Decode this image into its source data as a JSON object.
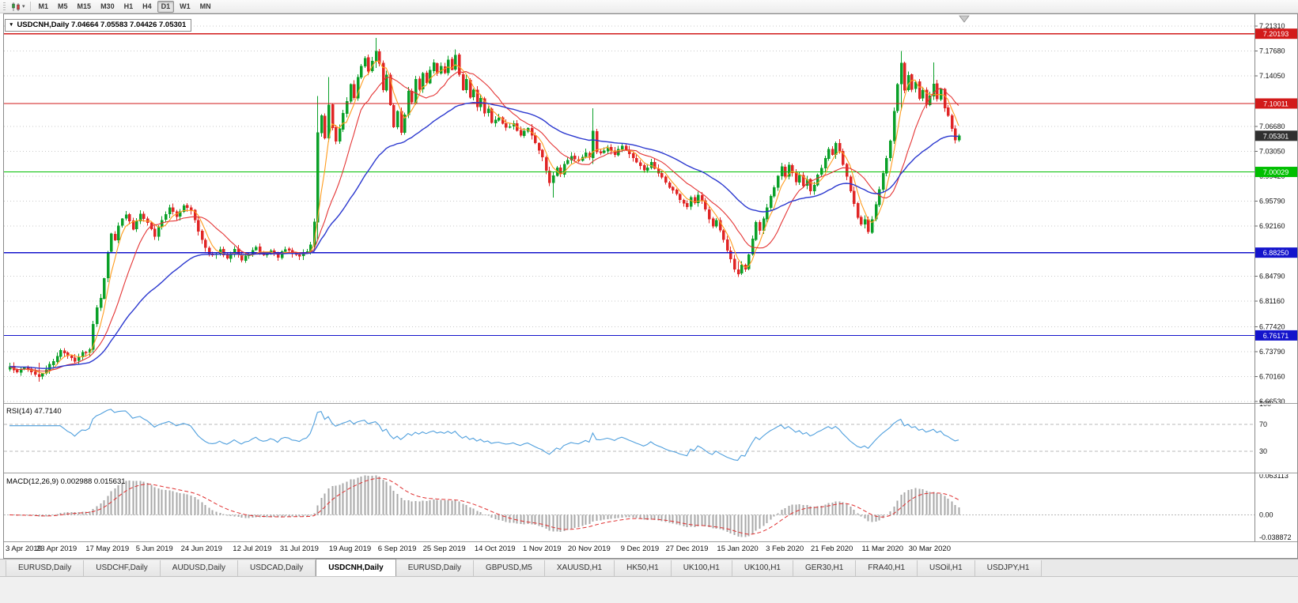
{
  "toolbar": {
    "timeframes": [
      "M1",
      "M5",
      "M15",
      "M30",
      "H1",
      "H4",
      "D1",
      "W1",
      "MN"
    ],
    "active": "D1"
  },
  "title_box": {
    "text": "USDCNH,Daily 7.04664 7.05583 7.04426 7.05301",
    "symbol": "USDCNH",
    "period": "Daily"
  },
  "tabs": {
    "active_index": 4,
    "items": [
      "EURUSD,Daily",
      "USDCHF,Daily",
      "AUDUSD,Daily",
      "USDCAD,Daily",
      "USDCNH,Daily",
      "EURUSD,Daily",
      "GBPUSD,M5",
      "XAUUSD,H1",
      "HK50,H1",
      "UK100,H1",
      "UK100,H1",
      "GER30,H1",
      "FRA40,H1",
      "USOil,H1",
      "USDJPY,H1"
    ]
  },
  "chart_data": {
    "type": "candlestick",
    "symbol": "USDCNH",
    "period": "Daily",
    "ohlc": {
      "open": 7.04664,
      "high": 7.05583,
      "low": 7.04426,
      "close": 7.05301
    },
    "bars": 263,
    "price_range": [
      6.6653,
      7.2131
    ],
    "y_ticks": [
      7.2131,
      7.1768,
      7.1405,
      7.0668,
      7.0305,
      6.9942,
      6.9579,
      6.9216,
      6.8479,
      6.8116,
      6.7742,
      6.7379,
      6.7016,
      6.6653
    ],
    "hlines": [
      {
        "price": 7.20193,
        "color": "#d21a1a"
      },
      {
        "price": 7.10011,
        "color": "#d21a1a"
      },
      {
        "price": 7.00029,
        "color": "#00bf00"
      },
      {
        "price": 6.8825,
        "color": "#1414cc"
      },
      {
        "price": 6.76171,
        "color": "#1414cc"
      }
    ],
    "current_price": 7.05301,
    "x_labels": [
      "3 Apr 2019",
      "23 Apr 2019",
      "17 May 2019",
      "5 Jun 2019",
      "24 Jun 2019",
      "12 Jul 2019",
      "31 Jul 2019",
      "19 Aug 2019",
      "6 Sep 2019",
      "25 Sep 2019",
      "14 Oct 2019",
      "1 Nov 2019",
      "20 Nov 2019",
      "9 Dec 2019",
      "27 Dec 2019",
      "15 Jan 2020",
      "3 Feb 2020",
      "21 Feb 2020",
      "11 Mar 2020",
      "30 Mar 2020"
    ],
    "x_label_indices": [
      0,
      13,
      27,
      40,
      53,
      67,
      80,
      94,
      107,
      120,
      134,
      147,
      160,
      174,
      187,
      201,
      214,
      227,
      241,
      254
    ],
    "waypoints": [
      [
        0,
        6.716
      ],
      [
        2,
        6.707
      ],
      [
        4,
        6.716
      ],
      [
        6,
        6.709
      ],
      [
        8,
        6.7
      ],
      [
        10,
        6.713
      ],
      [
        12,
        6.723
      ],
      [
        14,
        6.741
      ],
      [
        16,
        6.731
      ],
      [
        18,
        6.726
      ],
      [
        20,
        6.736
      ],
      [
        22,
        6.741
      ],
      [
        23,
        6.78
      ],
      [
        24,
        6.803
      ],
      [
        25,
        6.818
      ],
      [
        26,
        6.846
      ],
      [
        27,
        6.882
      ],
      [
        28,
        6.91
      ],
      [
        29,
        6.903
      ],
      [
        30,
        6.923
      ],
      [
        32,
        6.938
      ],
      [
        34,
        6.917
      ],
      [
        36,
        6.941
      ],
      [
        38,
        6.926
      ],
      [
        40,
        6.907
      ],
      [
        42,
        6.931
      ],
      [
        44,
        6.947
      ],
      [
        46,
        6.935
      ],
      [
        48,
        6.952
      ],
      [
        50,
        6.946
      ],
      [
        52,
        6.913
      ],
      [
        54,
        6.888
      ],
      [
        56,
        6.877
      ],
      [
        58,
        6.885
      ],
      [
        60,
        6.876
      ],
      [
        62,
        6.888
      ],
      [
        64,
        6.871
      ],
      [
        66,
        6.881
      ],
      [
        68,
        6.889
      ],
      [
        70,
        6.878
      ],
      [
        72,
        6.885
      ],
      [
        74,
        6.877
      ],
      [
        76,
        6.887
      ],
      [
        78,
        6.881
      ],
      [
        80,
        6.878
      ],
      [
        82,
        6.885
      ],
      [
        83,
        6.893
      ],
      [
        84,
        6.928
      ],
      [
        85,
        7.058
      ],
      [
        86,
        7.081
      ],
      [
        87,
        7.049
      ],
      [
        88,
        7.096
      ],
      [
        89,
        7.063
      ],
      [
        90,
        7.045
      ],
      [
        91,
        7.063
      ],
      [
        92,
        7.087
      ],
      [
        93,
        7.105
      ],
      [
        94,
        7.127
      ],
      [
        95,
        7.109
      ],
      [
        96,
        7.137
      ],
      [
        97,
        7.153
      ],
      [
        98,
        7.168
      ],
      [
        99,
        7.147
      ],
      [
        100,
        7.161
      ],
      [
        101,
        7.178
      ],
      [
        102,
        7.157
      ],
      [
        103,
        7.121
      ],
      [
        104,
        7.141
      ],
      [
        105,
        7.097
      ],
      [
        106,
        7.067
      ],
      [
        107,
        7.089
      ],
      [
        108,
        7.059
      ],
      [
        109,
        7.083
      ],
      [
        110,
        7.119
      ],
      [
        111,
        7.103
      ],
      [
        112,
        7.135
      ],
      [
        113,
        7.119
      ],
      [
        114,
        7.145
      ],
      [
        115,
        7.129
      ],
      [
        116,
        7.149
      ],
      [
        117,
        7.161
      ],
      [
        118,
        7.143
      ],
      [
        119,
        7.155
      ],
      [
        120,
        7.147
      ],
      [
        121,
        7.163
      ],
      [
        122,
        7.149
      ],
      [
        123,
        7.169
      ],
      [
        124,
        7.141
      ],
      [
        125,
        7.121
      ],
      [
        126,
        7.135
      ],
      [
        127,
        7.109
      ],
      [
        128,
        7.121
      ],
      [
        129,
        7.097
      ],
      [
        130,
        7.107
      ],
      [
        131,
        7.085
      ],
      [
        132,
        7.093
      ],
      [
        133,
        7.073
      ],
      [
        135,
        7.081
      ],
      [
        137,
        7.063
      ],
      [
        139,
        7.069
      ],
      [
        141,
        7.055
      ],
      [
        143,
        7.065
      ],
      [
        145,
        7.043
      ],
      [
        147,
        7.021
      ],
      [
        148,
        7.003
      ],
      [
        149,
        6.985
      ],
      [
        150,
        6.993
      ],
      [
        151,
        7.007
      ],
      [
        152,
        6.997
      ],
      [
        153,
        7.011
      ],
      [
        155,
        7.023
      ],
      [
        157,
        7.017
      ],
      [
        159,
        7.029
      ],
      [
        160,
        7.021
      ],
      [
        161,
        7.061
      ],
      [
        162,
        7.031
      ],
      [
        163,
        7.027
      ],
      [
        165,
        7.037
      ],
      [
        167,
        7.027
      ],
      [
        169,
        7.039
      ],
      [
        171,
        7.027
      ],
      [
        173,
        7.013
      ],
      [
        175,
        7.003
      ],
      [
        177,
        7.013
      ],
      [
        179,
        6.997
      ],
      [
        181,
        6.985
      ],
      [
        183,
        6.973
      ],
      [
        185,
        6.961
      ],
      [
        187,
        6.949
      ],
      [
        188,
        6.961
      ],
      [
        189,
        6.955
      ],
      [
        190,
        6.965
      ],
      [
        191,
        6.957
      ],
      [
        192,
        6.945
      ],
      [
        193,
        6.933
      ],
      [
        194,
        6.923
      ],
      [
        195,
        6.931
      ],
      [
        196,
        6.915
      ],
      [
        197,
        6.901
      ],
      [
        198,
        6.885
      ],
      [
        199,
        6.871
      ],
      [
        200,
        6.857
      ],
      [
        201,
        6.851
      ],
      [
        202,
        6.863
      ],
      [
        203,
        6.857
      ],
      [
        204,
        6.879
      ],
      [
        205,
        6.903
      ],
      [
        206,
        6.927
      ],
      [
        207,
        6.913
      ],
      [
        208,
        6.931
      ],
      [
        209,
        6.949
      ],
      [
        210,
        6.963
      ],
      [
        211,
        6.977
      ],
      [
        212,
        6.995
      ],
      [
        213,
        7.007
      ],
      [
        214,
        6.995
      ],
      [
        215,
        7.011
      ],
      [
        216,
        7.001
      ],
      [
        217,
        6.987
      ],
      [
        218,
        6.995
      ],
      [
        219,
        6.979
      ],
      [
        220,
        6.987
      ],
      [
        221,
        6.971
      ],
      [
        222,
        6.981
      ],
      [
        223,
        6.995
      ],
      [
        224,
        7.007
      ],
      [
        225,
        7.021
      ],
      [
        226,
        7.035
      ],
      [
        227,
        7.027
      ],
      [
        228,
        7.043
      ],
      [
        229,
        7.031
      ],
      [
        230,
        7.011
      ],
      [
        231,
        6.993
      ],
      [
        232,
        6.971
      ],
      [
        233,
        6.953
      ],
      [
        234,
        6.935
      ],
      [
        235,
        6.923
      ],
      [
        236,
        6.931
      ],
      [
        237,
        6.913
      ],
      [
        238,
        6.931
      ],
      [
        239,
        6.953
      ],
      [
        240,
        6.975
      ],
      [
        241,
        6.999
      ],
      [
        242,
        7.021
      ],
      [
        243,
        7.047
      ],
      [
        244,
        7.089
      ],
      [
        245,
        7.129
      ],
      [
        246,
        7.159
      ],
      [
        247,
        7.119
      ],
      [
        248,
        7.141
      ],
      [
        249,
        7.121
      ],
      [
        250,
        7.133
      ],
      [
        251,
        7.109
      ],
      [
        252,
        7.121
      ],
      [
        253,
        7.097
      ],
      [
        254,
        7.113
      ],
      [
        255,
        7.127
      ],
      [
        256,
        7.107
      ],
      [
        257,
        7.121
      ],
      [
        258,
        7.095
      ],
      [
        259,
        7.081
      ],
      [
        260,
        7.065
      ],
      [
        261,
        7.047
      ],
      [
        262,
        7.053
      ]
    ],
    "spikes": {
      "8": [
        6.694,
        6.722
      ],
      "85": [
        6.902,
        7.111
      ],
      "88": [
        7.052,
        7.139
      ],
      "101": [
        7.152,
        7.196
      ],
      "123": [
        7.149,
        7.179
      ],
      "150": [
        6.963,
        7.0
      ],
      "161": [
        7.012,
        7.093
      ],
      "201": [
        6.847,
        6.87
      ],
      "246": [
        7.09,
        7.177
      ],
      "255": [
        7.105,
        7.16
      ]
    },
    "moving_averages": [
      {
        "type": "sma",
        "period": 5,
        "color_key": "ma_fast"
      },
      {
        "type": "sma",
        "period": 13,
        "color_key": "ma_mid"
      },
      {
        "type": "ema",
        "period": 40,
        "color_key": "ma_slow"
      }
    ],
    "rsi": {
      "label": "RSI(14) 47.7140",
      "period": 14,
      "levels": [
        70,
        30
      ],
      "axis_labels": [
        [
          100,
          "100"
        ],
        [
          70,
          "70"
        ],
        [
          30,
          "30"
        ]
      ]
    },
    "macd": {
      "label": "MACD(12,26,9) 0.002988 0.015631",
      "fast": 12,
      "slow": 26,
      "signal": 9,
      "range": [
        -0.038872,
        0.063113
      ],
      "axis_labels": [
        [
          0.063113,
          "0.063113"
        ],
        [
          0,
          "0.00"
        ],
        [
          -0.038872,
          "-0.038872"
        ]
      ]
    },
    "colors": {
      "up": "#0aa028",
      "down": "#e02525",
      "grid": "#c9c9c9",
      "axis_text": "#111111",
      "rsi_line": "#4f9fdd",
      "macd_hist": "#a8a8a8",
      "macd_signal": "#e03030",
      "ma_fast": "#ff9c1e",
      "ma_mid": "#e43434",
      "ma_slow": "#2b38cf",
      "price_badge_bg": "#303030"
    }
  }
}
